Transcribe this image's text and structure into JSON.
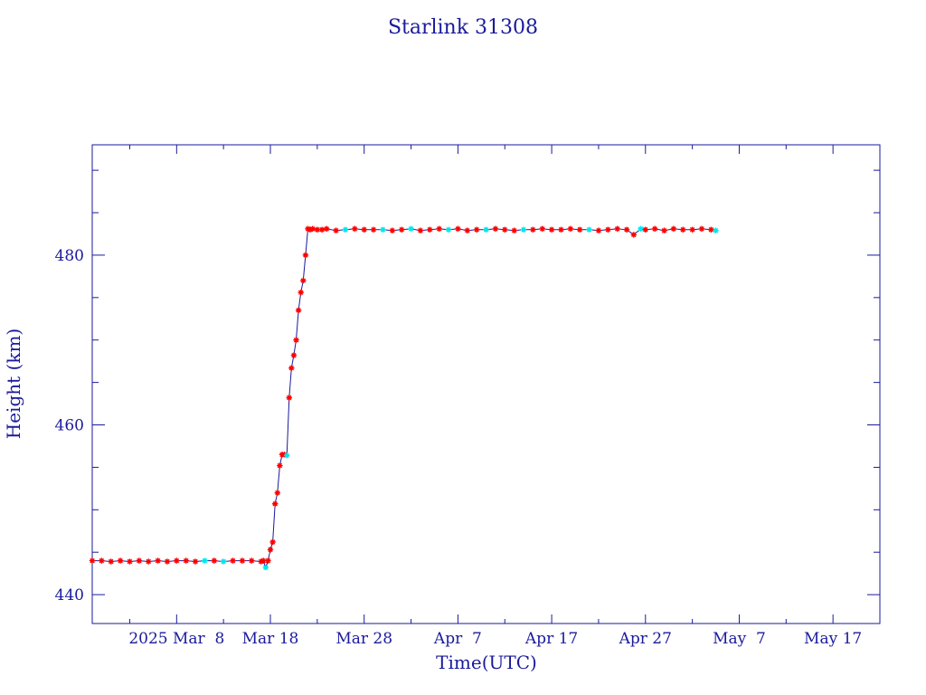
{
  "chart_data": {
    "type": "line",
    "title": "Starlink 31308",
    "xlabel": "Time(UTC)",
    "ylabel": "Height (km)",
    "x_tick_labels": [
      {
        "date": "2025-03-08",
        "label": "2025 Mar  8"
      },
      {
        "date": "2025-03-18",
        "label": "Mar 18"
      },
      {
        "date": "2025-03-28",
        "label": "Mar 28"
      },
      {
        "date": "2025-04-07",
        "label": "Apr  7"
      },
      {
        "date": "2025-04-17",
        "label": "Apr 17"
      },
      {
        "date": "2025-04-27",
        "label": "Apr 27"
      },
      {
        "date": "2025-05-07",
        "label": "May  7"
      },
      {
        "date": "2025-05-17",
        "label": "May 17"
      }
    ],
    "y_tick_labels": [
      440,
      460,
      480
    ],
    "xlim": [
      "2025-02-27",
      "2025-05-22"
    ],
    "ylim": [
      436.6,
      493
    ],
    "grid": false,
    "colors": {
      "frame": "#1a1a9c",
      "line": "#1a1a9c",
      "marker": "#ff0000",
      "marker_alt": "#00e5ee",
      "text": "#1a1a9c"
    },
    "series": [
      {
        "x": [
          "2025-02-27 00:00",
          "2025-02-28 00:00",
          "2025-03-01 00:00",
          "2025-03-02 00:00",
          "2025-03-03 00:00",
          "2025-03-04 00:00",
          "2025-03-05 00:00",
          "2025-03-06 00:00",
          "2025-03-07 00:00",
          "2025-03-08 00:00",
          "2025-03-09 00:00",
          "2025-03-10 00:00",
          "2025-03-11 00:00",
          "2025-03-12 00:00",
          "2025-03-13 00:00",
          "2025-03-14 00:00",
          "2025-03-15 00:00",
          "2025-03-16 00:00",
          "2025-03-17 00:00",
          "2025-03-17 06:00",
          "2025-03-17 12:00",
          "2025-03-17 18:00",
          "2025-03-18 00:00",
          "2025-03-18 06:00",
          "2025-03-18 12:00",
          "2025-03-18 18:00",
          "2025-03-19 00:00",
          "2025-03-19 06:00",
          "2025-03-19 12:00",
          "2025-03-19 18:00",
          "2025-03-20 00:00",
          "2025-03-20 06:00",
          "2025-03-20 12:00",
          "2025-03-20 18:00",
          "2025-03-21 00:00",
          "2025-03-21 06:00",
          "2025-03-21 12:00",
          "2025-03-21 18:00",
          "2025-03-22 00:00",
          "2025-03-22 06:00",
          "2025-03-22 12:00",
          "2025-03-23 00:00",
          "2025-03-23 12:00",
          "2025-03-24 00:00",
          "2025-03-25 00:00",
          "2025-03-26 00:00",
          "2025-03-27 00:00",
          "2025-03-28 00:00",
          "2025-03-29 00:00",
          "2025-03-30 00:00",
          "2025-03-31 00:00",
          "2025-04-01 00:00",
          "2025-04-02 00:00",
          "2025-04-03 00:00",
          "2025-04-04 00:00",
          "2025-04-05 00:00",
          "2025-04-06 00:00",
          "2025-04-07 00:00",
          "2025-04-08 00:00",
          "2025-04-09 00:00",
          "2025-04-10 00:00",
          "2025-04-11 00:00",
          "2025-04-12 00:00",
          "2025-04-13 00:00",
          "2025-04-14 00:00",
          "2025-04-15 00:00",
          "2025-04-16 00:00",
          "2025-04-17 00:00",
          "2025-04-18 00:00",
          "2025-04-19 00:00",
          "2025-04-20 00:00",
          "2025-04-21 00:00",
          "2025-04-22 00:00",
          "2025-04-23 00:00",
          "2025-04-24 00:00",
          "2025-04-25 00:00",
          "2025-04-25 18:00",
          "2025-04-26 12:00",
          "2025-04-27 00:00",
          "2025-04-28 00:00",
          "2025-04-29 00:00",
          "2025-04-30 00:00",
          "2025-05-01 00:00",
          "2025-05-02 00:00",
          "2025-05-03 00:00",
          "2025-05-04 00:00",
          "2025-05-04 12:00"
        ],
        "y": [
          444.0,
          444.0,
          443.9,
          444.0,
          443.9,
          444.0,
          443.9,
          444.0,
          443.9,
          444.0,
          444.0,
          443.9,
          444.0,
          444.0,
          443.9,
          444.0,
          444.0,
          444.0,
          443.9,
          444.0,
          443.2,
          444.0,
          445.3,
          446.2,
          450.7,
          452.0,
          455.2,
          456.5,
          456.5,
          456.4,
          463.2,
          466.7,
          468.2,
          470.0,
          473.5,
          475.6,
          477.0,
          480.0,
          483.1,
          483.0,
          483.1,
          483.0,
          483.0,
          483.1,
          482.9,
          483.0,
          483.1,
          483.0,
          483.0,
          483.0,
          482.9,
          483.0,
          483.1,
          482.9,
          483.0,
          483.1,
          483.0,
          483.1,
          482.9,
          483.0,
          483.0,
          483.1,
          483.0,
          482.9,
          483.0,
          483.0,
          483.1,
          483.0,
          483.0,
          483.1,
          483.0,
          483.0,
          482.9,
          483.0,
          483.1,
          483.0,
          482.4,
          483.1,
          483.0,
          483.1,
          482.9,
          483.1,
          483.0,
          483.0,
          483.1,
          483.0,
          482.9
        ],
        "alt_marker_indices": [
          12,
          14,
          20,
          29,
          45,
          49,
          52,
          56,
          60,
          64,
          71,
          77,
          86
        ]
      }
    ]
  }
}
